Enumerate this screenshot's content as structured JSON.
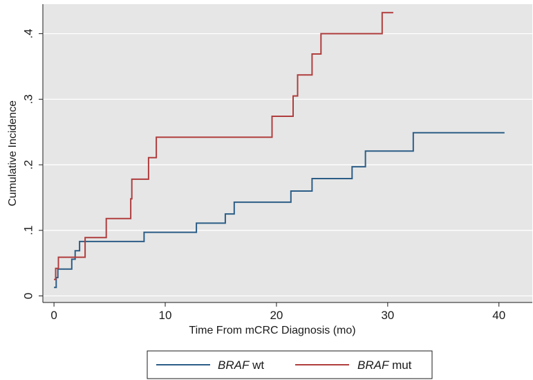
{
  "chart_data": {
    "type": "line",
    "step": true,
    "xlabel": "Time From mCRC Diagnosis (mo)",
    "ylabel": "Cumulative Incidence",
    "xlim": [
      -1,
      43
    ],
    "ylim": [
      -0.01,
      0.445
    ],
    "x_ticks": [
      0,
      10,
      20,
      30,
      40
    ],
    "x_tick_labels": [
      "0",
      "10",
      "20",
      "30",
      "40"
    ],
    "y_ticks": [
      0,
      0.1,
      0.2,
      0.3,
      0.4
    ],
    "y_tick_labels": [
      "0",
      ".1",
      ".2",
      ".3",
      ".4"
    ],
    "grid": "horizontal",
    "legend_position": "bottom",
    "background": "#e6e6e6",
    "series": [
      {
        "name": "BRAF wt",
        "name_italic": "BRAF",
        "name_suffix": " wt",
        "color": "#2b5d86",
        "points": [
          [
            0.0,
            0.013
          ],
          [
            0.2,
            0.028
          ],
          [
            0.35,
            0.041
          ],
          [
            1.6,
            0.056
          ],
          [
            1.9,
            0.069
          ],
          [
            2.3,
            0.083
          ],
          [
            8.1,
            0.097
          ],
          [
            12.8,
            0.111
          ],
          [
            15.4,
            0.125
          ],
          [
            16.2,
            0.143
          ],
          [
            21.3,
            0.16
          ],
          [
            23.2,
            0.179
          ],
          [
            26.8,
            0.197
          ],
          [
            28.0,
            0.221
          ],
          [
            32.3,
            0.249
          ],
          [
            40.5,
            0.249
          ]
        ]
      },
      {
        "name": "BRAF mut",
        "name_italic": "BRAF",
        "name_suffix": " mut",
        "color": "#b03d3d",
        "points": [
          [
            0.0,
            0.025
          ],
          [
            0.15,
            0.042
          ],
          [
            0.4,
            0.059
          ],
          [
            2.8,
            0.089
          ],
          [
            4.7,
            0.118
          ],
          [
            6.9,
            0.148
          ],
          [
            7.0,
            0.178
          ],
          [
            8.5,
            0.211
          ],
          [
            9.2,
            0.242
          ],
          [
            19.6,
            0.274
          ],
          [
            21.5,
            0.305
          ],
          [
            21.9,
            0.337
          ],
          [
            23.2,
            0.369
          ],
          [
            24.0,
            0.4
          ],
          [
            29.5,
            0.432
          ],
          [
            30.5,
            0.432
          ]
        ]
      }
    ]
  }
}
